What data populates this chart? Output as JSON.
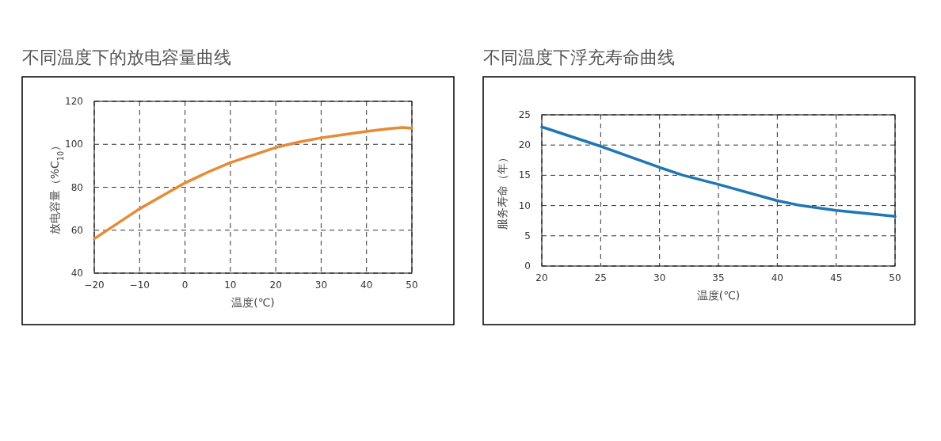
{
  "chart_data": [
    {
      "type": "line",
      "title": "不同温度下的放电容量曲线",
      "xlabel": "温度(℃)",
      "ylabel": "放电容量（%C$_{10}$）",
      "x": [
        -20,
        -15,
        -10,
        -5,
        0,
        5,
        10,
        15,
        20,
        25,
        30,
        35,
        40,
        45,
        48,
        50
      ],
      "series": [
        {
          "color": "#e68a35",
          "values": [
            56,
            63,
            70,
            76,
            82,
            87,
            91.5,
            95,
            98.5,
            101,
            103,
            104.5,
            106,
            107.3,
            107.8,
            107.5
          ]
        }
      ],
      "xlim": [
        -20,
        50
      ],
      "ylim": [
        40,
        120
      ],
      "xticks": [
        {
          "value": -20,
          "label": "−20"
        },
        {
          "value": -10,
          "label": "−10"
        },
        0,
        10,
        20,
        30,
        40,
        50
      ],
      "yticks": [
        40,
        60,
        80,
        100,
        120
      ],
      "grid": true
    },
    {
      "type": "line",
      "title": "不同温度下浮充寿命曲线",
      "xlabel": "温度(℃)",
      "ylabel": "服务寿命（年）",
      "x": [
        20,
        25,
        30,
        32,
        35,
        40,
        42,
        45,
        50
      ],
      "series": [
        {
          "color": "#1f77b4",
          "values": [
            23,
            19.8,
            16.3,
            15,
            13.5,
            10.8,
            10,
            9.2,
            8.2
          ]
        }
      ],
      "xlim": [
        20,
        50
      ],
      "ylim": [
        0,
        25
      ],
      "xticks": [
        20,
        25,
        30,
        35,
        40,
        45,
        50
      ],
      "yticks": [
        0,
        5,
        10,
        15,
        20,
        25
      ],
      "grid": true
    }
  ]
}
